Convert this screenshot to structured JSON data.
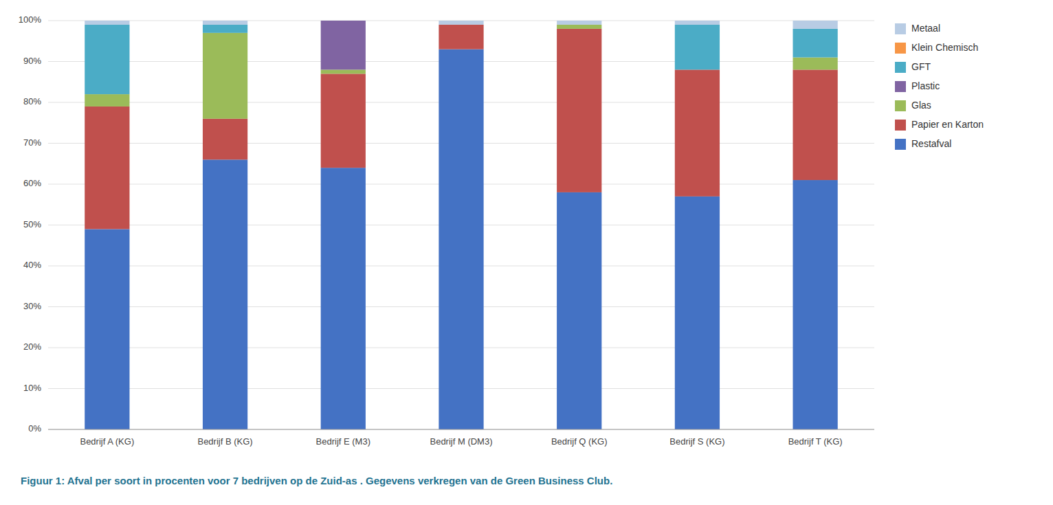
{
  "chart_data": {
    "type": "bar",
    "stacked": true,
    "title": "Figuur 1: Afval per soort in procenten voor 7 bedrijven op de Zuid-as . Gegevens verkregen van de Green Business Club.",
    "categories": [
      "Bedrijf A (KG)",
      "Bedrijf B (KG)",
      "Bedrijf E (M3)",
      "Bedrijf M (DM3)",
      "Bedrijf Q (KG)",
      "Bedrijf S (KG)",
      "Bedrijf T (KG)"
    ],
    "series": [
      {
        "name": "Restafval",
        "color": "#4472C4",
        "values": [
          49,
          66,
          64,
          93,
          58,
          57,
          61
        ]
      },
      {
        "name": "Papier en Karton",
        "color": "#C0504D",
        "values": [
          30,
          10,
          23,
          6,
          40,
          31,
          27
        ]
      },
      {
        "name": "Glas",
        "color": "#9BBB59",
        "values": [
          3,
          21,
          1,
          0,
          1,
          0,
          3
        ]
      },
      {
        "name": "Plastic",
        "color": "#8064A2",
        "values": [
          0,
          0,
          12,
          0,
          0,
          0,
          0
        ]
      },
      {
        "name": "GFT",
        "color": "#4BACC6",
        "values": [
          17,
          2,
          0,
          0,
          0,
          11,
          7
        ]
      },
      {
        "name": "Klein Chemisch",
        "color": "#F79646",
        "values": [
          0,
          0,
          0,
          0,
          0,
          0,
          0
        ]
      },
      {
        "name": "Metaal",
        "color": "#B8CCE4",
        "values": [
          1,
          1,
          0,
          1,
          1,
          1,
          2
        ]
      }
    ],
    "ylim": [
      0,
      100
    ],
    "yticks": [
      {
        "value": 0,
        "label": "0%"
      },
      {
        "value": 10,
        "label": "10%"
      },
      {
        "value": 20,
        "label": "20%"
      },
      {
        "value": 30,
        "label": "30%"
      },
      {
        "value": 40,
        "label": "40%"
      },
      {
        "value": 50,
        "label": "50%"
      },
      {
        "value": 60,
        "label": "60%"
      },
      {
        "value": 70,
        "label": "70%"
      },
      {
        "value": 80,
        "label": "80%"
      },
      {
        "value": 90,
        "label": "90%"
      },
      {
        "value": 100,
        "label": "100%"
      }
    ],
    "grid": true,
    "legend": "right"
  }
}
